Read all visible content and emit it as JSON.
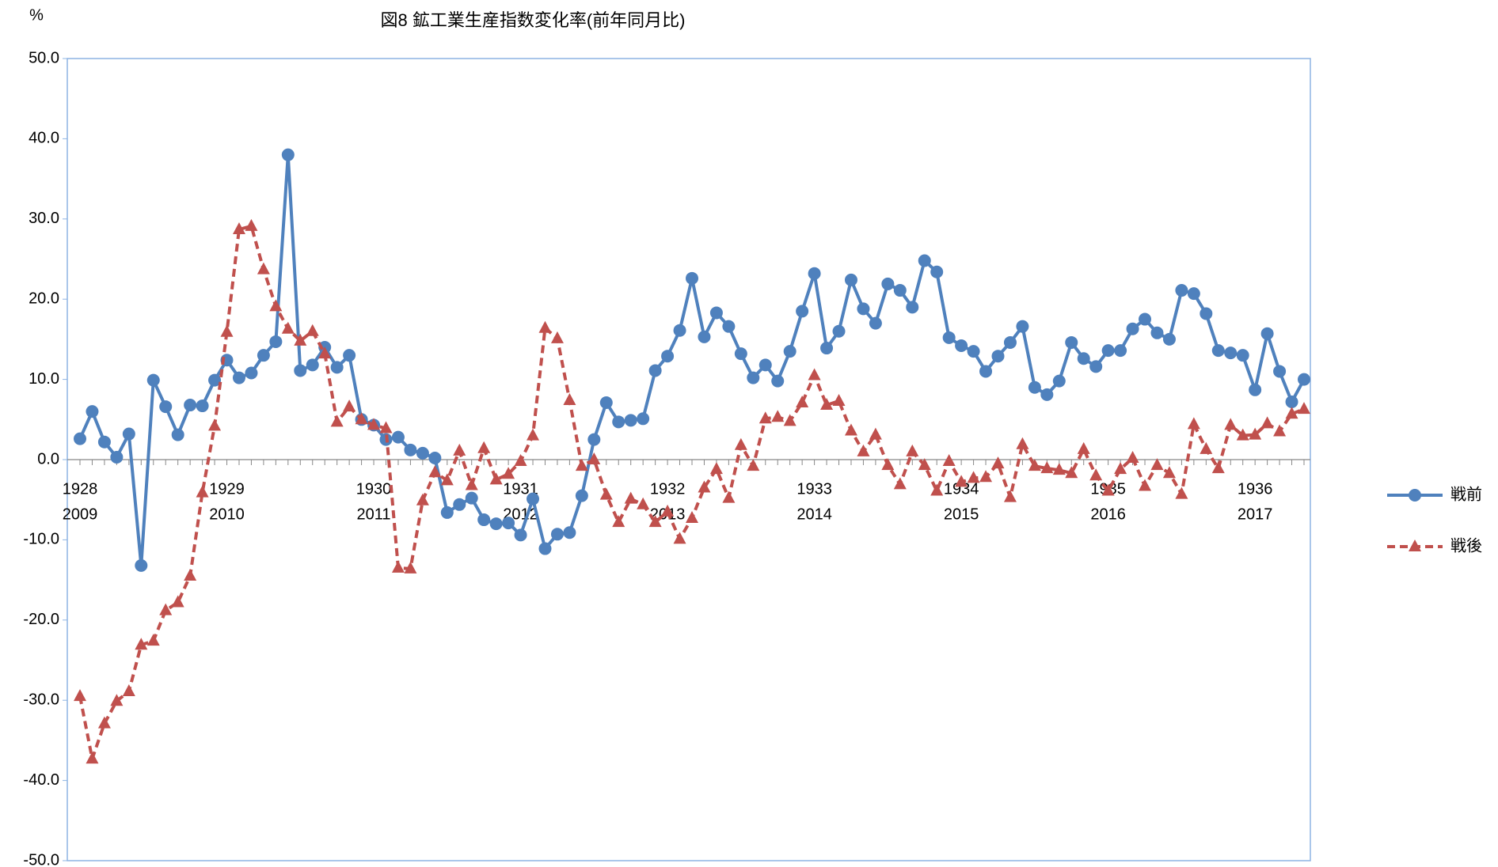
{
  "chart_data": {
    "type": "line",
    "title": "図8 鉱工業生産指数変化率(前年同月比)",
    "y_unit": "%",
    "categories": [
      "1928",
      null,
      null,
      null,
      null,
      null,
      null,
      null,
      null,
      null,
      null,
      null,
      "1929",
      null,
      null,
      null,
      null,
      null,
      null,
      null,
      null,
      null,
      null,
      null,
      "1930",
      null,
      null,
      null,
      null,
      null,
      null,
      null,
      null,
      null,
      null,
      null,
      "1931",
      null,
      null,
      null,
      null,
      null,
      null,
      null,
      null,
      null,
      null,
      null,
      "1932",
      null,
      null,
      null,
      null,
      null,
      null,
      null,
      null,
      null,
      null,
      null,
      "1933",
      null,
      null,
      null,
      null,
      null,
      null,
      null,
      null,
      null,
      null,
      null,
      "1934",
      null,
      null,
      null,
      null,
      null,
      null,
      null,
      null,
      null,
      null,
      null,
      "1935",
      null,
      null,
      null,
      null,
      null,
      null,
      null,
      null,
      null,
      null,
      null,
      "1936",
      null,
      null,
      null,
      null
    ],
    "categories_postwar": [
      "2009",
      null,
      null,
      null,
      null,
      null,
      null,
      null,
      null,
      null,
      null,
      null,
      "2010",
      null,
      null,
      null,
      null,
      null,
      null,
      null,
      null,
      null,
      null,
      null,
      "2011",
      null,
      null,
      null,
      null,
      null,
      null,
      null,
      null,
      null,
      null,
      null,
      "2012",
      null,
      null,
      null,
      null,
      null,
      null,
      null,
      null,
      null,
      null,
      null,
      "2013",
      null,
      null,
      null,
      null,
      null,
      null,
      null,
      null,
      null,
      null,
      null,
      "2014",
      null,
      null,
      null,
      null,
      null,
      null,
      null,
      null,
      null,
      null,
      null,
      "2015",
      null,
      null,
      null,
      null,
      null,
      null,
      null,
      null,
      null,
      null,
      null,
      "2016",
      null,
      null,
      null,
      null,
      null,
      null,
      null,
      null,
      null,
      null,
      null,
      "2017",
      null,
      null,
      null,
      null
    ],
    "series": [
      {
        "name": "戦前",
        "color": "#4f81bd",
        "marker": "circle",
        "dashed": false,
        "values": [
          2.6,
          6.0,
          2.2,
          0.3,
          3.2,
          -13.2,
          9.9,
          6.6,
          3.1,
          6.8,
          6.7,
          9.9,
          12.4,
          10.2,
          10.8,
          13.0,
          14.7,
          38.0,
          11.1,
          11.8,
          14.0,
          11.5,
          13.0,
          5.0,
          4.3,
          2.5,
          2.8,
          1.2,
          0.8,
          0.2,
          -6.6,
          -5.6,
          -4.8,
          -7.5,
          -8.0,
          -7.9,
          -9.4,
          -4.9,
          -11.1,
          -9.3,
          -9.1,
          -4.5,
          2.5,
          7.1,
          4.7,
          4.9,
          5.1,
          11.1,
          12.9,
          16.1,
          22.6,
          15.3,
          18.3,
          16.6,
          13.2,
          10.2,
          11.8,
          9.8,
          13.5,
          18.5,
          23.2,
          13.9,
          16.0,
          22.4,
          18.8,
          17.0,
          21.9,
          21.1,
          19.0,
          24.8,
          23.4,
          15.2,
          14.2,
          13.5,
          11.0,
          12.9,
          14.6,
          16.6,
          9.0,
          8.1,
          9.8,
          14.6,
          12.6,
          11.6,
          13.6,
          13.6,
          16.3,
          17.5,
          15.8,
          15.0,
          21.1,
          20.7,
          18.2,
          13.6,
          13.3,
          13.0,
          8.7,
          15.7,
          11.0,
          7.2,
          10.0
        ]
      },
      {
        "name": "戦後",
        "color": "#c0504d",
        "marker": "triangle",
        "dashed": true,
        "values": [
          -29.5,
          -37.3,
          -32.9,
          -30.1,
          -28.9,
          -23.1,
          -22.6,
          -18.8,
          -17.8,
          -14.5,
          -4.1,
          4.2,
          15.9,
          28.7,
          29.1,
          23.7,
          19.1,
          16.3,
          14.8,
          16.0,
          13.2,
          4.7,
          6.6,
          5.0,
          4.3,
          3.9,
          -13.5,
          -13.6,
          -5.1,
          -1.6,
          -2.6,
          1.1,
          -3.2,
          1.4,
          -2.5,
          -1.8,
          -0.2,
          3.0,
          16.4,
          15.1,
          7.4,
          -0.8,
          0.0,
          -4.4,
          -7.8,
          -4.9,
          -5.6,
          -7.8,
          -6.5,
          -9.9,
          -7.3,
          -3.5,
          -1.2,
          -4.8,
          1.8,
          -0.8,
          5.1,
          5.3,
          4.8,
          7.1,
          10.5,
          6.8,
          7.3,
          3.6,
          1.0,
          3.1,
          -0.7,
          -3.1,
          1.0,
          -0.7,
          -3.9,
          -0.2,
          -2.8,
          -2.3,
          -2.2,
          -0.5,
          -4.7,
          1.9,
          -0.8,
          -1.1,
          -1.3,
          -1.7,
          1.3,
          -2.0,
          -3.9,
          -1.2,
          0.2,
          -3.3,
          -0.7,
          -1.7,
          -4.3,
          4.4,
          1.3,
          -1.1,
          4.3,
          3.0,
          3.1,
          4.5,
          3.5,
          5.7,
          6.3
        ]
      }
    ],
    "ylim": [
      -50,
      50
    ],
    "yticks": [
      {
        "value": -50,
        "label": "-50.0"
      },
      {
        "value": -40,
        "label": "-40.0"
      },
      {
        "value": -30,
        "label": "-30.0"
      },
      {
        "value": -20,
        "label": "-20.0"
      },
      {
        "value": -10,
        "label": "-10.0"
      },
      {
        "value": 0,
        "label": "0.0"
      },
      {
        "value": 10,
        "label": "10.0"
      },
      {
        "value": 20,
        "label": "20.0"
      },
      {
        "value": 30,
        "label": "30.0"
      },
      {
        "value": 40,
        "label": "40.0"
      },
      {
        "value": 50,
        "label": "50.0"
      }
    ],
    "grid": false,
    "legend": "right"
  }
}
